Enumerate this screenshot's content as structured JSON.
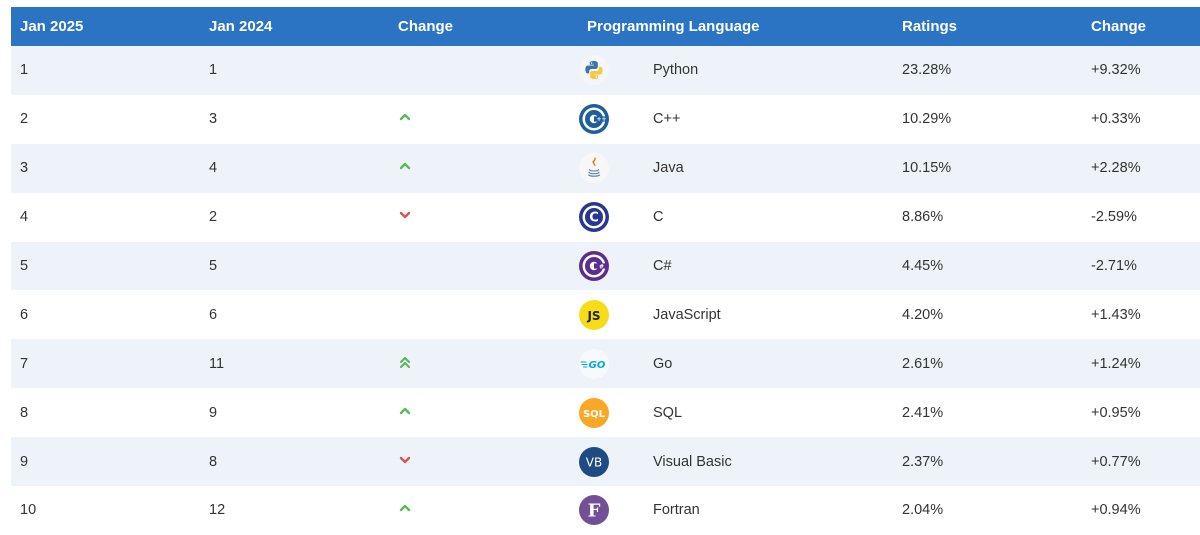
{
  "header": {
    "jan2025": "Jan 2025",
    "jan2024": "Jan 2024",
    "change": "Change",
    "language": "Programming Language",
    "ratings": "Ratings",
    "change2": "Change"
  },
  "colors": {
    "header_bg": "#2b74c3",
    "row_alt": "#eef3f9",
    "arrow_up": "#5cb85c",
    "arrow_down": "#d9534f"
  },
  "rows": [
    {
      "rank2025": "1",
      "rank2024": "1",
      "trend": "none",
      "logo": "python-logo-icon",
      "language": "Python",
      "rating": "23.28%",
      "change": "+9.32%"
    },
    {
      "rank2025": "2",
      "rank2024": "3",
      "trend": "up",
      "logo": "cpp-logo-icon",
      "language": "C++",
      "rating": "10.29%",
      "change": "+0.33%"
    },
    {
      "rank2025": "3",
      "rank2024": "4",
      "trend": "up",
      "logo": "java-logo-icon",
      "language": "Java",
      "rating": "10.15%",
      "change": "+2.28%"
    },
    {
      "rank2025": "4",
      "rank2024": "2",
      "trend": "down",
      "logo": "c-logo-icon",
      "language": "C",
      "rating": "8.86%",
      "change": "-2.59%"
    },
    {
      "rank2025": "5",
      "rank2024": "5",
      "trend": "none",
      "logo": "csharp-logo-icon",
      "language": "C#",
      "rating": "4.45%",
      "change": "-2.71%"
    },
    {
      "rank2025": "6",
      "rank2024": "6",
      "trend": "none",
      "logo": "javascript-logo-icon",
      "language": "JavaScript",
      "rating": "4.20%",
      "change": "+1.43%"
    },
    {
      "rank2025": "7",
      "rank2024": "11",
      "trend": "double-up",
      "logo": "go-logo-icon",
      "language": "Go",
      "rating": "2.61%",
      "change": "+1.24%"
    },
    {
      "rank2025": "8",
      "rank2024": "9",
      "trend": "up",
      "logo": "sql-logo-icon",
      "language": "SQL",
      "rating": "2.41%",
      "change": "+0.95%"
    },
    {
      "rank2025": "9",
      "rank2024": "8",
      "trend": "down",
      "logo": "visual-basic-logo-icon",
      "language": "Visual Basic",
      "rating": "2.37%",
      "change": "+0.77%"
    },
    {
      "rank2025": "10",
      "rank2024": "12",
      "trend": "up",
      "logo": "fortran-logo-icon",
      "language": "Fortran",
      "rating": "2.04%",
      "change": "+0.94%"
    }
  ]
}
